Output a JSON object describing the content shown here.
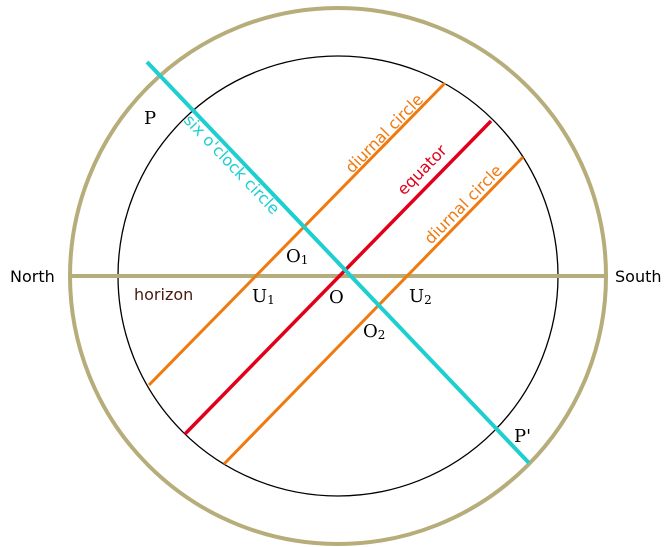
{
  "colors": {
    "outer_circle": "#b7ad7a",
    "inner_circle": "#000000",
    "horizon": "#b7ad7a",
    "six_oclock": "#1fcfcf",
    "equator": "#e0001a",
    "diurnal": "#ee7a10",
    "horizon_label": "#4a1a10"
  },
  "labels": {
    "north": "North",
    "south": "South",
    "horizon": "horizon",
    "six_oclock_circle": "six o'clock circle",
    "diurnal_circle_upper": "diurnal circle",
    "diurnal_circle_lower": "diurnal circle",
    "equator": "equator"
  },
  "points": {
    "P": "P",
    "P_prime": "P'",
    "O": "O",
    "O1": "O",
    "O1_sub": "1",
    "O2": "O",
    "O2_sub": "2",
    "U1": "U",
    "U1_sub": "1",
    "U2": "U",
    "U2_sub": "2"
  }
}
